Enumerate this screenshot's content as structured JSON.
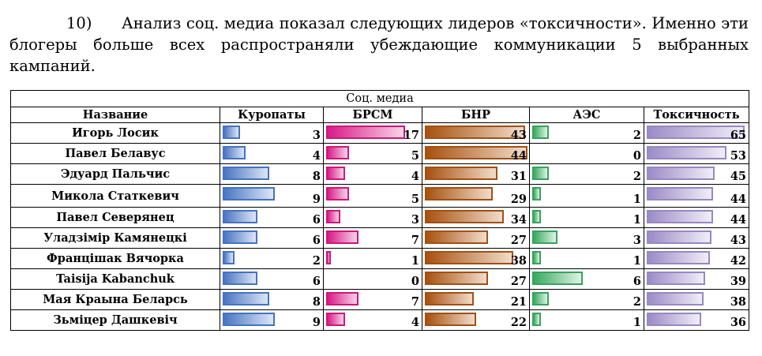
{
  "paragraph": {
    "number": "10)",
    "line1": "Анализ соц. медиа показал следующих лидеров «токсичности». Именно эти",
    "line2": "блогеры больше всех распространяли убеждающие коммуникации 5 выбранных",
    "line3": "кампаний."
  },
  "table": {
    "group_header": "Соц. медиа",
    "columns": [
      "Название",
      "Куропаты",
      "БРСМ",
      "БНР",
      "АЭС",
      "Токсичность"
    ],
    "rows": [
      {
        "name": "Игорь Лосик",
        "values": [
          "3",
          "17",
          "43",
          "2",
          "65"
        ]
      },
      {
        "name": "Павел Белавус",
        "values": [
          "4",
          "5",
          "44",
          "0",
          "53"
        ]
      },
      {
        "name": "Эдуард Пальчис",
        "values": [
          "8",
          "4",
          "31",
          "2",
          "45"
        ]
      },
      {
        "name": "Микола Статкевич",
        "values": [
          "9",
          "5",
          "29",
          "1",
          "44"
        ]
      },
      {
        "name": "Павел Северянец",
        "values": [
          "6",
          "3",
          "34",
          "1",
          "44"
        ]
      },
      {
        "name": "Уладзімір Камянецкі",
        "values": [
          "6",
          "7",
          "27",
          "3",
          "43"
        ]
      },
      {
        "name": "Францішак Вячорка",
        "values": [
          "2",
          "1",
          "38",
          "1",
          "42"
        ]
      },
      {
        "name": "Taisija Kabanchuk",
        "values": [
          "6",
          "0",
          "27",
          "6",
          "39"
        ]
      },
      {
        "name": "Мая Крaына Беларсь",
        "values": [
          "8",
          "7",
          "21",
          "2",
          "38"
        ]
      },
      {
        "name": "Зьміцер Дашкевіч",
        "values": [
          "9",
          "4",
          "22",
          "1",
          "36"
        ]
      }
    ],
    "bar_max": [
      9,
      17,
      44,
      6,
      65
    ],
    "colors": {
      "kuropaty": "#4472c4",
      "brsm": "#d0157d",
      "bnr": "#a34f12",
      "aes": "#35a35c",
      "toxicity": "#9887c3"
    }
  }
}
